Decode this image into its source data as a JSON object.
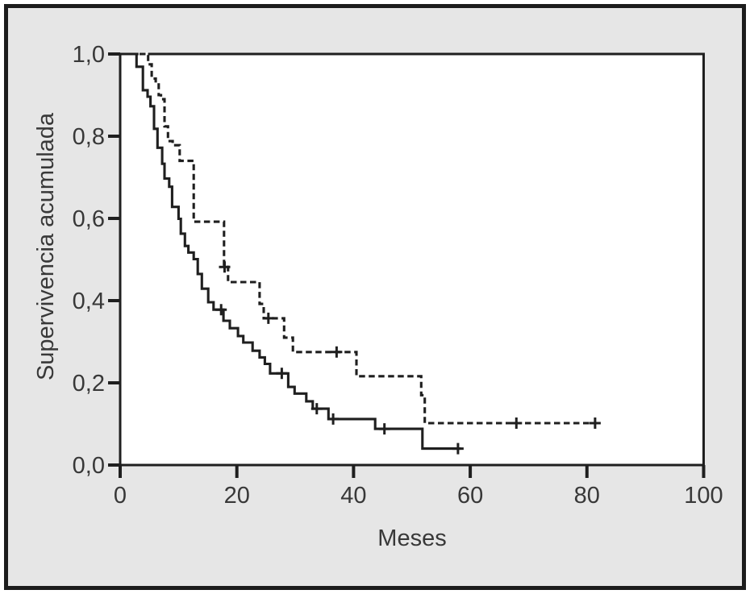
{
  "figure": {
    "outer_border_color": "#1c1c1c",
    "canvas_background": "#e6e6e6",
    "plot_background": "#ffffff",
    "line_color": "#1f1f1f",
    "text_color": "#383838"
  },
  "chart_data": {
    "type": "line",
    "subtype": "kaplan_meier_step",
    "title": "",
    "xlabel": "Meses",
    "ylabel": "Supervivencia acumulada",
    "decimal_separator": "comma",
    "xlim": [
      0,
      100
    ],
    "ylim": [
      0.0,
      1.0
    ],
    "x_ticks": [
      0,
      20,
      40,
      60,
      80,
      100
    ],
    "x_tick_labels": [
      "0",
      "20",
      "40",
      "60",
      "80",
      "100"
    ],
    "y_tick_values": [
      0.0,
      0.2,
      0.4,
      0.6,
      0.8,
      1.0
    ],
    "y_tick_labels": [
      "0,0",
      "0,2",
      "0,4",
      "0,6",
      "0,8",
      "1,0"
    ],
    "grid": false,
    "legend": "none",
    "series": [
      {
        "name": "curve-solid",
        "line_style": "solid",
        "color": "#1f1f1f",
        "start_survival": 1.0,
        "steps": [
          [
            2.8,
            0.969
          ],
          [
            3.9,
            0.912
          ],
          [
            4.7,
            0.896
          ],
          [
            5.2,
            0.873
          ],
          [
            5.8,
            0.818
          ],
          [
            6.4,
            0.772
          ],
          [
            7.2,
            0.733
          ],
          [
            7.6,
            0.697
          ],
          [
            8.4,
            0.677
          ],
          [
            8.9,
            0.628
          ],
          [
            10.0,
            0.599
          ],
          [
            10.4,
            0.563
          ],
          [
            11.1,
            0.533
          ],
          [
            11.7,
            0.517
          ],
          [
            12.6,
            0.501
          ],
          [
            13.3,
            0.465
          ],
          [
            14.0,
            0.429
          ],
          [
            15.1,
            0.396
          ],
          [
            16.0,
            0.378
          ],
          [
            17.7,
            0.351
          ],
          [
            18.8,
            0.333
          ],
          [
            20.2,
            0.314
          ],
          [
            21.1,
            0.298
          ],
          [
            22.7,
            0.278
          ],
          [
            23.9,
            0.262
          ],
          [
            24.8,
            0.246
          ],
          [
            25.7,
            0.223
          ],
          [
            28.8,
            0.19
          ],
          [
            29.9,
            0.174
          ],
          [
            31.9,
            0.155
          ],
          [
            33.0,
            0.137
          ],
          [
            35.7,
            0.112
          ],
          [
            43.7,
            0.088
          ],
          [
            51.8,
            0.04
          ]
        ],
        "end_time": 58.4,
        "censor_marks": [
          [
            17.3,
            0.378
          ],
          [
            27.7,
            0.223
          ],
          [
            33.7,
            0.137
          ],
          [
            36.5,
            0.112
          ],
          [
            45.3,
            0.088
          ],
          [
            57.9,
            0.04
          ]
        ]
      },
      {
        "name": "curve-dashed",
        "line_style": "dashed",
        "color": "#1f1f1f",
        "start_survival": 1.0,
        "steps": [
          [
            4.8,
            0.975
          ],
          [
            5.4,
            0.94
          ],
          [
            6.1,
            0.93
          ],
          [
            6.6,
            0.9
          ],
          [
            7.0,
            0.89
          ],
          [
            7.6,
            0.824
          ],
          [
            8.2,
            0.788
          ],
          [
            9.0,
            0.778
          ],
          [
            10.2,
            0.74
          ],
          [
            12.6,
            0.592
          ],
          [
            17.8,
            0.482
          ],
          [
            18.5,
            0.445
          ],
          [
            23.9,
            0.392
          ],
          [
            24.6,
            0.357
          ],
          [
            28.1,
            0.31
          ],
          [
            29.6,
            0.275
          ],
          [
            40.5,
            0.216
          ],
          [
            51.6,
            0.17
          ],
          [
            52.2,
            0.102
          ]
        ],
        "end_time": 82.3,
        "censor_marks": [
          [
            17.9,
            0.482
          ],
          [
            25.4,
            0.357
          ],
          [
            37.1,
            0.275
          ],
          [
            67.9,
            0.102
          ],
          [
            81.4,
            0.102
          ]
        ]
      }
    ]
  }
}
